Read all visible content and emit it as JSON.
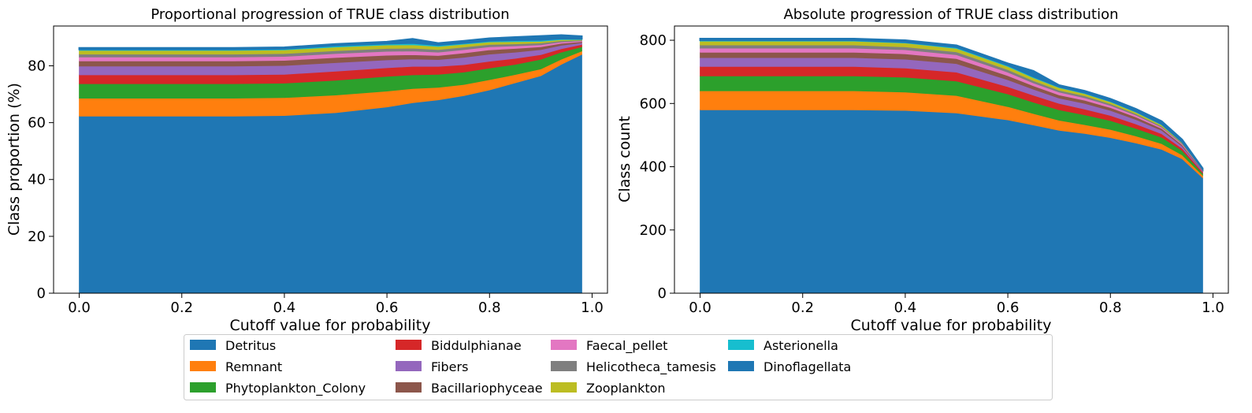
{
  "chart_data": [
    {
      "type": "area",
      "stacked": true,
      "title": "Proportional progression of TRUE class distribution",
      "xlabel": "Cutoff value for probability",
      "ylabel": "Class proportion (%)",
      "xlim": [
        -0.05,
        1.03
      ],
      "ylim": [
        0,
        94
      ],
      "xticks": [
        0.0,
        0.2,
        0.4,
        0.6,
        0.8,
        1.0
      ],
      "xtick_labels": [
        "0.0",
        "0.2",
        "0.4",
        "0.6",
        "0.8",
        "1.0"
      ],
      "yticks": [
        0,
        20,
        40,
        60,
        80
      ],
      "ytick_labels": [
        "0",
        "20",
        "40",
        "60",
        "80"
      ],
      "grid": false,
      "x": [
        0.0,
        0.1,
        0.2,
        0.3,
        0.4,
        0.5,
        0.6,
        0.65,
        0.7,
        0.75,
        0.8,
        0.85,
        0.9,
        0.94,
        0.98
      ],
      "series": [
        {
          "name": "Detritus",
          "values": [
            62.3,
            62.3,
            62.3,
            62.3,
            62.5,
            63.5,
            65.5,
            67.0,
            68.0,
            69.5,
            71.5,
            74.0,
            76.5,
            80.5,
            84.0
          ]
        },
        {
          "name": "Remnant",
          "values": [
            6.3,
            6.3,
            6.3,
            6.3,
            6.3,
            6.2,
            5.6,
            5.0,
            4.4,
            3.9,
            3.6,
            2.9,
            2.4,
            1.8,
            1.2
          ]
        },
        {
          "name": "Phytoplankton_Colony",
          "values": [
            5.1,
            5.1,
            5.1,
            5.1,
            5.1,
            5.2,
            5.2,
            4.8,
            4.6,
            4.4,
            4.1,
            3.6,
            3.4,
            2.5,
            1.5
          ]
        },
        {
          "name": "Biddulphianae",
          "values": [
            3.1,
            3.1,
            3.1,
            3.1,
            3.1,
            3.2,
            3.0,
            3.0,
            2.8,
            2.6,
            2.4,
            2.1,
            1.6,
            1.2,
            0.8
          ]
        },
        {
          "name": "Fibers",
          "values": [
            3.1,
            3.1,
            3.1,
            3.1,
            3.1,
            3.0,
            2.8,
            2.6,
            2.4,
            2.6,
            2.5,
            2.2,
            1.8,
            1.2,
            0.6
          ]
        },
        {
          "name": "Bacillariophyceae",
          "values": [
            1.8,
            1.8,
            1.8,
            1.8,
            1.8,
            1.8,
            1.6,
            1.5,
            1.4,
            1.5,
            1.5,
            1.3,
            1.0,
            0.7,
            0.4
          ]
        },
        {
          "name": "Faecal_pellet",
          "values": [
            1.4,
            1.4,
            1.4,
            1.4,
            1.4,
            1.4,
            1.4,
            1.3,
            1.2,
            1.2,
            1.1,
            0.9,
            0.7,
            0.5,
            0.3
          ]
        },
        {
          "name": "Helicotheca_tamesis",
          "values": [
            1.0,
            1.0,
            1.0,
            1.0,
            1.0,
            1.0,
            1.0,
            1.0,
            0.9,
            0.9,
            0.8,
            0.7,
            0.6,
            0.4,
            0.2
          ]
        },
        {
          "name": "Zooplankton",
          "values": [
            1.3,
            1.3,
            1.3,
            1.3,
            1.3,
            1.3,
            1.2,
            1.2,
            1.1,
            1.0,
            0.9,
            0.8,
            0.6,
            0.4,
            0.2
          ]
        },
        {
          "name": "Asterionella",
          "values": [
            0.4,
            0.4,
            0.4,
            0.4,
            0.4,
            0.5,
            0.5,
            0.6,
            0.5,
            0.4,
            0.4,
            0.5,
            0.5,
            0.4,
            0.3
          ]
        },
        {
          "name": "Dinoflagellata",
          "values": [
            0.5,
            0.5,
            0.5,
            0.5,
            0.5,
            0.6,
            0.7,
            1.5,
            0.7,
            0.8,
            0.9,
            1.1,
            1.4,
            1.2,
            0.9
          ]
        }
      ]
    },
    {
      "type": "area",
      "stacked": true,
      "title": "Absolute progression of TRUE class distribution",
      "xlabel": "Cutoff value for probability",
      "ylabel": "Class count",
      "xlim": [
        -0.05,
        1.03
      ],
      "ylim": [
        0,
        845
      ],
      "xticks": [
        0.0,
        0.2,
        0.4,
        0.6,
        0.8,
        1.0
      ],
      "xtick_labels": [
        "0.0",
        "0.2",
        "0.4",
        "0.6",
        "0.8",
        "1.0"
      ],
      "yticks": [
        0,
        200,
        400,
        600,
        800
      ],
      "ytick_labels": [
        "0",
        "200",
        "400",
        "600",
        "800"
      ],
      "grid": false,
      "x": [
        0.0,
        0.1,
        0.2,
        0.3,
        0.4,
        0.5,
        0.6,
        0.65,
        0.7,
        0.75,
        0.8,
        0.85,
        0.9,
        0.94,
        0.98
      ],
      "series": [
        {
          "name": "Detritus",
          "values": [
            580,
            580,
            580,
            580,
            578,
            570,
            548,
            532,
            515,
            505,
            492,
            475,
            455,
            425,
            365
          ]
        },
        {
          "name": "Remnant",
          "values": [
            60,
            60,
            60,
            60,
            58,
            55,
            42,
            36,
            32,
            28,
            26,
            22,
            18,
            12,
            8
          ]
        },
        {
          "name": "Phytoplankton_Colony",
          "values": [
            47,
            47,
            47,
            47,
            47,
            46,
            40,
            36,
            33,
            31,
            28,
            24,
            20,
            14,
            6
          ]
        },
        {
          "name": "Biddulphianae",
          "values": [
            30,
            30,
            30,
            30,
            29,
            28,
            23,
            22,
            20,
            18,
            16,
            14,
            11,
            7,
            4
          ]
        },
        {
          "name": "Fibers",
          "values": [
            28,
            28,
            28,
            28,
            28,
            27,
            22,
            19,
            17,
            18,
            16,
            14,
            11,
            7,
            3
          ]
        },
        {
          "name": "Bacillariophyceae",
          "values": [
            17,
            17,
            17,
            17,
            17,
            16,
            13,
            11,
            10,
            10,
            9,
            8,
            6,
            4,
            2
          ]
        },
        {
          "name": "Faecal_pellet",
          "values": [
            13,
            13,
            13,
            13,
            13,
            12,
            11,
            9,
            9,
            8,
            7,
            6,
            4,
            3,
            1
          ]
        },
        {
          "name": "Helicotheca_tamesis",
          "values": [
            10,
            10,
            10,
            10,
            9,
            9,
            8,
            7,
            6,
            6,
            5,
            4,
            3,
            2,
            1
          ]
        },
        {
          "name": "Zooplankton",
          "values": [
            12,
            12,
            12,
            12,
            12,
            11,
            10,
            9,
            8,
            7,
            6,
            5,
            4,
            2,
            1
          ]
        },
        {
          "name": "Asterionella",
          "values": [
            3,
            3,
            3,
            3,
            3,
            4,
            4,
            4,
            3,
            3,
            3,
            3,
            3,
            2,
            1
          ]
        },
        {
          "name": "Dinoflagellata",
          "values": [
            5,
            5,
            5,
            5,
            6,
            6,
            6,
            18,
            5,
            6,
            7,
            8,
            9,
            8,
            3
          ]
        }
      ]
    }
  ],
  "legend": {
    "placement": "bottom-center",
    "columns": 5,
    "entries": [
      {
        "label": "Detritus",
        "color": "#1f77b4"
      },
      {
        "label": "Remnant",
        "color": "#ff7f0e"
      },
      {
        "label": "Phytoplankton_Colony",
        "color": "#2ca02c"
      },
      {
        "label": "Biddulphianae",
        "color": "#d62728"
      },
      {
        "label": "Fibers",
        "color": "#9467bd"
      },
      {
        "label": "Bacillariophyceae",
        "color": "#8c564b"
      },
      {
        "label": "Faecal_pellet",
        "color": "#e377c2"
      },
      {
        "label": "Helicotheca_tamesis",
        "color": "#7f7f7f"
      },
      {
        "label": "Zooplankton",
        "color": "#bcbd22"
      },
      {
        "label": "Asterionella",
        "color": "#17becf"
      },
      {
        "label": "Dinoflagellata",
        "color": "#1f77b4"
      }
    ]
  }
}
